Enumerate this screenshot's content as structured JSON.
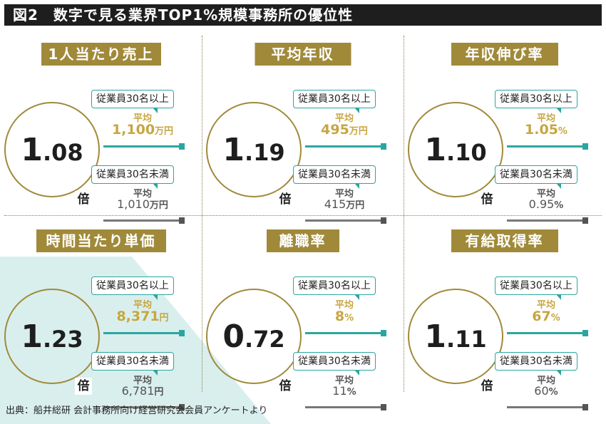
{
  "title": "図2　数字で見る業界TOP1%規模事務所の優位性",
  "source": "出典：船井総研 会計事務所向け経営研究会会員アンケートより",
  "chart_data": {
    "type": "table",
    "group_labels": [
      "従業員30名以上",
      "従業員30名未満"
    ],
    "avg_label": "平均",
    "ratio_unit": "倍",
    "metrics": [
      {
        "title": "1人当たり売上",
        "ratio_int": "1",
        "ratio_dec": ".08",
        "large_value": "1,100",
        "small_value": "1,010",
        "unit": "万円"
      },
      {
        "title": "平均年収",
        "ratio_int": "1",
        "ratio_dec": ".19",
        "large_value": "495",
        "small_value": "415",
        "unit": "万円"
      },
      {
        "title": "年収伸び率",
        "ratio_int": "1",
        "ratio_dec": ".10",
        "large_value": "1.05",
        "small_value": "0.95",
        "unit": "%"
      },
      {
        "title": "時間当たり単価",
        "ratio_int": "1",
        "ratio_dec": ".23",
        "large_value": "8,371",
        "small_value": "6,781",
        "unit": "円"
      },
      {
        "title": "離職率",
        "ratio_int": "0",
        "ratio_dec": ".72",
        "large_value": "8",
        "small_value": "11",
        "unit": "%"
      },
      {
        "title": "有給取得率",
        "ratio_int": "1",
        "ratio_dec": ".11",
        "large_value": "67",
        "small_value": "60",
        "unit": "%"
      }
    ]
  },
  "colors": {
    "gold": "#a08a3a",
    "teal": "#2aa6a0",
    "gray": "#777777",
    "bg_teal": "#d9efed"
  }
}
